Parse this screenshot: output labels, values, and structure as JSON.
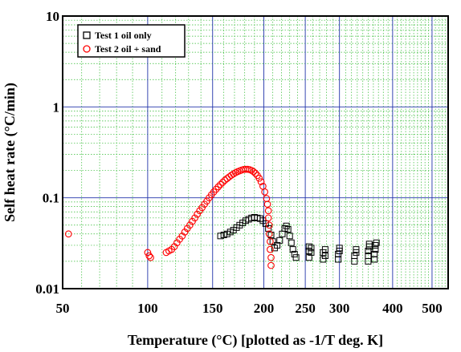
{
  "chart_data": {
    "type": "scatter",
    "title": "",
    "xlabel": "Temperature (°C) [plotted as -1/T deg. K]",
    "ylabel": "Self heat rate (°C/min)",
    "x_scale": "-1/T (K)",
    "y_scale": "log",
    "xlim": [
      50,
      550
    ],
    "ylim": [
      0.01,
      10
    ],
    "x_ticks": [
      50,
      100,
      150,
      200,
      250,
      300,
      400,
      500
    ],
    "x_tick_labels": [
      "50",
      "100",
      "150",
      "200",
      "250",
      "300",
      "400",
      "500"
    ],
    "y_ticks": [
      0.01,
      0.1,
      1,
      10
    ],
    "y_tick_labels": [
      "0.01",
      "0.1",
      "1",
      "10"
    ],
    "grid": true,
    "legend_position": "top-left",
    "series": [
      {
        "name": "Test 1 oil only",
        "color": "#000000",
        "marker": "square",
        "points": [
          [
            157,
            0.038
          ],
          [
            160,
            0.039
          ],
          [
            163,
            0.04
          ],
          [
            166,
            0.042
          ],
          [
            169,
            0.044
          ],
          [
            172,
            0.047
          ],
          [
            175,
            0.05
          ],
          [
            178,
            0.053
          ],
          [
            181,
            0.056
          ],
          [
            184,
            0.058
          ],
          [
            187,
            0.06
          ],
          [
            190,
            0.061
          ],
          [
            193,
            0.06
          ],
          [
            196,
            0.059
          ],
          [
            199,
            0.056
          ],
          [
            202,
            0.052
          ],
          [
            205,
            0.046
          ],
          [
            208,
            0.039
          ],
          [
            210,
            0.033
          ],
          [
            212,
            0.028
          ],
          [
            215,
            0.03
          ],
          [
            218,
            0.034
          ],
          [
            221,
            0.04
          ],
          [
            224,
            0.046
          ],
          [
            226,
            0.049
          ],
          [
            228,
            0.045
          ],
          [
            230,
            0.038
          ],
          [
            232,
            0.032
          ],
          [
            234,
            0.027
          ],
          [
            236,
            0.024
          ],
          [
            238,
            0.022
          ],
          [
            255,
            0.022
          ],
          [
            255,
            0.026
          ],
          [
            255,
            0.029
          ],
          [
            258,
            0.025
          ],
          [
            258,
            0.028
          ],
          [
            275,
            0.021
          ],
          [
            275,
            0.025
          ],
          [
            278,
            0.023
          ],
          [
            278,
            0.027
          ],
          [
            298,
            0.021
          ],
          [
            298,
            0.024
          ],
          [
            300,
            0.026
          ],
          [
            300,
            0.028
          ],
          [
            325,
            0.02
          ],
          [
            325,
            0.023
          ],
          [
            328,
            0.025
          ],
          [
            328,
            0.027
          ],
          [
            350,
            0.02
          ],
          [
            350,
            0.023
          ],
          [
            350,
            0.026
          ],
          [
            352,
            0.029
          ],
          [
            352,
            0.031
          ],
          [
            362,
            0.021
          ],
          [
            362,
            0.024
          ],
          [
            364,
            0.027
          ],
          [
            364,
            0.03
          ],
          [
            366,
            0.032
          ]
        ]
      },
      {
        "name": "Test 2 oil + sand",
        "color": "#ff0000",
        "marker": "circle",
        "points": [
          [
            53,
            0.04
          ],
          [
            100,
            0.025
          ],
          [
            101,
            0.023
          ],
          [
            102,
            0.022
          ],
          [
            113,
            0.025
          ],
          [
            115,
            0.026
          ],
          [
            117,
            0.027
          ],
          [
            119,
            0.029
          ],
          [
            121,
            0.032
          ],
          [
            123,
            0.035
          ],
          [
            125,
            0.038
          ],
          [
            127,
            0.042
          ],
          [
            129,
            0.046
          ],
          [
            131,
            0.05
          ],
          [
            133,
            0.055
          ],
          [
            135,
            0.06
          ],
          [
            137,
            0.066
          ],
          [
            139,
            0.072
          ],
          [
            141,
            0.078
          ],
          [
            143,
            0.085
          ],
          [
            145,
            0.092
          ],
          [
            147,
            0.1
          ],
          [
            149,
            0.108
          ],
          [
            151,
            0.116
          ],
          [
            153,
            0.124
          ],
          [
            155,
            0.132
          ],
          [
            157,
            0.14
          ],
          [
            159,
            0.148
          ],
          [
            161,
            0.156
          ],
          [
            163,
            0.163
          ],
          [
            165,
            0.17
          ],
          [
            167,
            0.177
          ],
          [
            169,
            0.183
          ],
          [
            171,
            0.189
          ],
          [
            173,
            0.194
          ],
          [
            175,
            0.198
          ],
          [
            177,
            0.202
          ],
          [
            179,
            0.205
          ],
          [
            181,
            0.206
          ],
          [
            183,
            0.206
          ],
          [
            185,
            0.204
          ],
          [
            187,
            0.2
          ],
          [
            189,
            0.194
          ],
          [
            191,
            0.186
          ],
          [
            193,
            0.176
          ],
          [
            195,
            0.164
          ],
          [
            197,
            0.15
          ],
          [
            199,
            0.134
          ],
          [
            201,
            0.116
          ],
          [
            203,
            0.098
          ],
          [
            204,
            0.085
          ],
          [
            205,
            0.072
          ],
          [
            205,
            0.06
          ],
          [
            206,
            0.05
          ],
          [
            206,
            0.04
          ],
          [
            207,
            0.033
          ],
          [
            207,
            0.027
          ],
          [
            208,
            0.022
          ],
          [
            208,
            0.018
          ]
        ]
      }
    ]
  }
}
